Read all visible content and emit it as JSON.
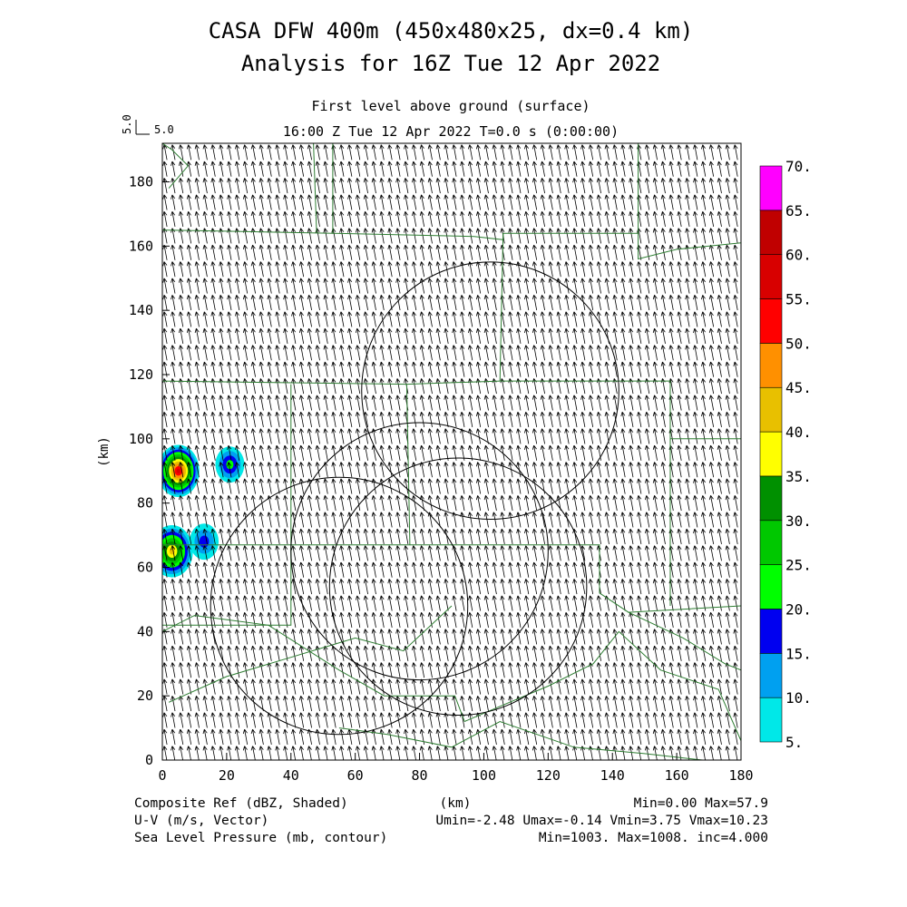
{
  "chart_data": {
    "type": "heatmap",
    "title": "CASA DFW 400m (450x480x25, dx=0.4 km)",
    "subtitle": "Analysis for 16Z Tue 12 Apr 2022",
    "level_label": "First level above ground (surface)",
    "time_label": "16:00 Z Tue 12 Apr 2022    T=0.0 s (0:00:00)",
    "vector_key": {
      "rotated": "5.0",
      "label": "5.0"
    },
    "xlabel": "(km)",
    "ylabel": "(km)",
    "xlim": [
      0,
      180
    ],
    "ylim": [
      0,
      192
    ],
    "x_ticks": [
      "0",
      "20",
      "40",
      "60",
      "80",
      "100",
      "120",
      "140",
      "160",
      "180"
    ],
    "y_ticks": [
      "0",
      "20",
      "40",
      "60",
      "80",
      "100",
      "120",
      "140",
      "160",
      "180"
    ],
    "colorbar": {
      "labels": [
        "5.",
        "10.",
        "15.",
        "20.",
        "25.",
        "30.",
        "35.",
        "40.",
        "45.",
        "50.",
        "55.",
        "60.",
        "65.",
        "70."
      ],
      "colors": [
        "#00e8e8",
        "#00a0f0",
        "#0000f0",
        "#00ff00",
        "#00c800",
        "#009000",
        "#ffff00",
        "#e8c000",
        "#ff9000",
        "#ff0000",
        "#d80000",
        "#c00000",
        "#ff00ff"
      ]
    },
    "footer": {
      "left": [
        "Composite Ref (dBZ, Shaded)",
        "U-V (m/s, Vector)",
        "Sea Level Pressure (mb, contour)"
      ],
      "center": "(km)",
      "right": [
        "Min=0.00 Max=57.9",
        "Umin=-2.48 Umax=-0.14 Vmin=3.75 Vmax=10.23",
        "Min=1003. Max=1008. inc=4.000"
      ]
    },
    "radar_rings": [
      {
        "cx": 80,
        "cy": 65,
        "r": 40
      },
      {
        "cx": 55,
        "cy": 48,
        "r": 40
      },
      {
        "cx": 92,
        "cy": 54,
        "r": 40
      },
      {
        "cx": 102,
        "cy": 115,
        "r": 40
      }
    ],
    "reflectivity_cells": [
      {
        "x": 5,
        "y": 90,
        "dbz": 57.9
      },
      {
        "x": 21,
        "y": 92,
        "dbz": 22
      },
      {
        "x": 3,
        "y": 65,
        "dbz": 40
      },
      {
        "x": 13,
        "y": 68,
        "dbz": 18
      }
    ],
    "wind": {
      "u": -1.3,
      "v": 7.0
    }
  }
}
